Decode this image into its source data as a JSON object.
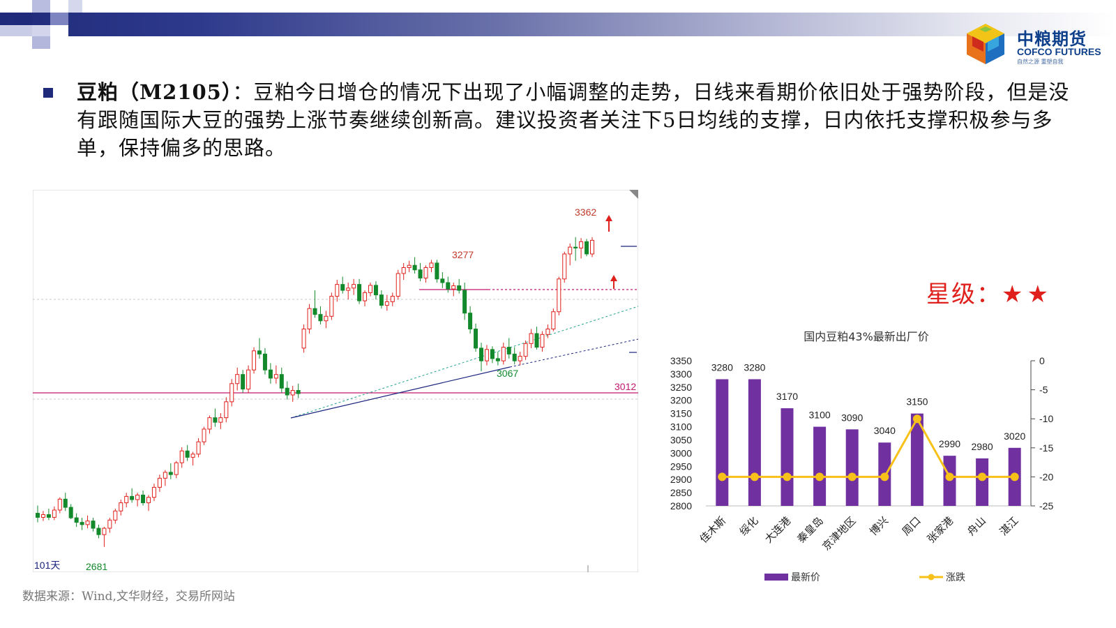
{
  "header": {
    "logo_cn": "中粮期货",
    "logo_en": "COFCO FUTURES",
    "logo_sub": "自然之源 重塑自我"
  },
  "paragraph": {
    "title": "豆粕（M2105）",
    "body": "：豆粕今日增仓的情况下出现了小幅调整的走势，日线来看期价依旧处于强势阶段，但是没有跟随国际大豆的强势上涨节奏继续创新高。建议投资者关注下5日均线的支撑，日内依托支撑积极参与多单，保持偏多的思路。"
  },
  "rating": {
    "label": "星级：",
    "stars": "★★"
  },
  "source": "数据来源：Wind,文华财经，交易所网站",
  "colors": {
    "up": "#e0201c",
    "down": "#12892b",
    "bar": "#7030a0",
    "line": "#f7c11a",
    "brand": "#1f2a7a"
  },
  "chart_data": [
    {
      "type": "candlestick",
      "title": "",
      "period_label": "101天",
      "annotations": [
        {
          "label": "2681",
          "value": 2681,
          "kind": "low"
        },
        {
          "label": "3277",
          "value": 3277,
          "kind": "high"
        },
        {
          "label": "3067",
          "value": 3067,
          "kind": "low"
        },
        {
          "label": "3362",
          "value": 3362,
          "kind": "high"
        },
        {
          "label": "3012",
          "value": 3012,
          "kind": "level"
        }
      ],
      "ylim": [
        2650,
        3420
      ],
      "candles": [
        [
          2755,
          2772,
          2735,
          2746
        ],
        [
          2746,
          2760,
          2738,
          2752
        ],
        [
          2752,
          2765,
          2740,
          2746
        ],
        [
          2746,
          2770,
          2740,
          2762
        ],
        [
          2762,
          2790,
          2755,
          2786
        ],
        [
          2786,
          2800,
          2760,
          2768
        ],
        [
          2768,
          2775,
          2742,
          2745
        ],
        [
          2745,
          2755,
          2725,
          2735
        ],
        [
          2735,
          2745,
          2718,
          2730
        ],
        [
          2730,
          2750,
          2722,
          2738
        ],
        [
          2738,
          2745,
          2715,
          2722
        ],
        [
          2722,
          2730,
          2700,
          2708
        ],
        [
          2708,
          2725,
          2681,
          2722
        ],
        [
          2722,
          2745,
          2712,
          2740
        ],
        [
          2740,
          2765,
          2732,
          2760
        ],
        [
          2760,
          2785,
          2750,
          2778
        ],
        [
          2778,
          2800,
          2768,
          2792
        ],
        [
          2792,
          2810,
          2778,
          2785
        ],
        [
          2785,
          2800,
          2770,
          2795
        ],
        [
          2795,
          2805,
          2772,
          2778
        ],
        [
          2778,
          2795,
          2760,
          2790
        ],
        [
          2790,
          2820,
          2782,
          2812
        ],
        [
          2812,
          2840,
          2802,
          2832
        ],
        [
          2832,
          2850,
          2815,
          2845
        ],
        [
          2845,
          2865,
          2830,
          2840
        ],
        [
          2840,
          2870,
          2832,
          2866
        ],
        [
          2866,
          2900,
          2855,
          2892
        ],
        [
          2892,
          2905,
          2870,
          2878
        ],
        [
          2878,
          2890,
          2860,
          2885
        ],
        [
          2885,
          2920,
          2878,
          2912
        ],
        [
          2912,
          2945,
          2905,
          2940
        ],
        [
          2940,
          2970,
          2930,
          2965
        ],
        [
          2965,
          2985,
          2945,
          2955
        ],
        [
          2955,
          2975,
          2940,
          2965
        ],
        [
          2965,
          3010,
          2955,
          3000
        ],
        [
          3000,
          3050,
          2990,
          3040
        ],
        [
          3040,
          3075,
          3025,
          3060
        ],
        [
          3060,
          3070,
          3020,
          3028
        ],
        [
          3028,
          3080,
          3020,
          3070
        ],
        [
          3070,
          3120,
          3062,
          3112
        ],
        [
          3112,
          3140,
          3095,
          3105
        ],
        [
          3105,
          3118,
          3060,
          3070
        ],
        [
          3070,
          3085,
          3040,
          3052
        ],
        [
          3052,
          3080,
          3040,
          3060
        ],
        [
          3060,
          3075,
          3020,
          3030
        ],
        [
          3030,
          3045,
          3005,
          3015
        ],
        [
          3015,
          3035,
          3000,
          3025
        ],
        [
          3025,
          3040,
          3008,
          3018
        ],
        [
          3118,
          3170,
          3108,
          3160
        ],
        [
          3160,
          3215,
          3150,
          3205
        ],
        [
          3205,
          3245,
          3185,
          3192
        ],
        [
          3192,
          3210,
          3170,
          3178
        ],
        [
          3178,
          3200,
          3162,
          3188
        ],
        [
          3188,
          3240,
          3180,
          3232
        ],
        [
          3232,
          3268,
          3220,
          3258
        ],
        [
          3258,
          3275,
          3238,
          3245
        ],
        [
          3245,
          3262,
          3225,
          3250
        ],
        [
          3250,
          3270,
          3235,
          3258
        ],
        [
          3258,
          3270,
          3215,
          3222
        ],
        [
          3222,
          3245,
          3210,
          3240
        ],
        [
          3240,
          3262,
          3232,
          3256
        ],
        [
          3256,
          3265,
          3225,
          3235
        ],
        [
          3235,
          3245,
          3205,
          3212
        ],
        [
          3212,
          3235,
          3200,
          3220
        ],
        [
          3220,
          3240,
          3210,
          3232
        ],
        [
          3232,
          3290,
          3225,
          3282
        ],
        [
          3282,
          3305,
          3268,
          3295
        ],
        [
          3295,
          3310,
          3285,
          3300
        ],
        [
          3300,
          3318,
          3282,
          3290
        ],
        [
          3290,
          3305,
          3265,
          3272
        ],
        [
          3272,
          3300,
          3262,
          3295
        ],
        [
          3295,
          3312,
          3285,
          3305
        ],
        [
          3305,
          3312,
          3262,
          3270
        ],
        [
          3270,
          3285,
          3250,
          3262
        ],
        [
          3262,
          3275,
          3240,
          3248
        ],
        [
          3248,
          3262,
          3232,
          3255
        ],
        [
          3255,
          3270,
          3238,
          3245
        ],
        [
          3245,
          3262,
          3180,
          3195
        ],
        [
          3195,
          3210,
          3150,
          3160
        ],
        [
          3160,
          3172,
          3110,
          3118
        ],
        [
          3118,
          3130,
          3067,
          3090
        ],
        [
          3090,
          3125,
          3080,
          3115
        ],
        [
          3115,
          3122,
          3085,
          3095
        ],
        [
          3095,
          3110,
          3080,
          3090
        ],
        [
          3090,
          3130,
          3082,
          3120
        ],
        [
          3120,
          3140,
          3095,
          3105
        ],
        [
          3105,
          3120,
          3082,
          3090
        ],
        [
          3090,
          3110,
          3080,
          3100
        ],
        [
          3100,
          3135,
          3092,
          3128
        ],
        [
          3128,
          3160,
          3118,
          3150
        ],
        [
          3150,
          3165,
          3115,
          3120
        ],
        [
          3120,
          3155,
          3110,
          3148
        ],
        [
          3148,
          3170,
          3140,
          3160
        ],
        [
          3160,
          3205,
          3155,
          3198
        ],
        [
          3198,
          3275,
          3190,
          3270
        ],
        [
          3270,
          3330,
          3262,
          3325
        ],
        [
          3325,
          3348,
          3300,
          3340
        ],
        [
          3340,
          3362,
          3310,
          3338
        ],
        [
          3338,
          3360,
          3315,
          3352
        ],
        [
          3352,
          3358,
          3320,
          3325
        ],
        [
          3325,
          3362,
          3318,
          3355
        ]
      ]
    },
    {
      "type": "bar",
      "title": "国内豆粕43%最新出厂价",
      "categories": [
        "佳木斯",
        "绥化",
        "大连港",
        "秦皇岛",
        "京津地区",
        "博兴",
        "周口",
        "张家港",
        "舟山",
        "湛江"
      ],
      "series": [
        {
          "name": "最新价",
          "type": "bar",
          "axis": "left",
          "values": [
            3280,
            3280,
            3170,
            3100,
            3090,
            3040,
            3150,
            2990,
            2980,
            3020
          ]
        },
        {
          "name": "涨跌",
          "type": "line",
          "axis": "right",
          "values": [
            -20,
            -20,
            -20,
            -20,
            -20,
            -20,
            -10,
            -20,
            -20,
            -20
          ]
        }
      ],
      "ylim": [
        2800,
        3350
      ],
      "yticks": [
        3350,
        3300,
        3250,
        3200,
        3150,
        3100,
        3050,
        3000,
        2950,
        2900,
        2850,
        2800
      ],
      "y2lim": [
        -25,
        0
      ],
      "y2ticks": [
        0,
        -5,
        -10,
        -15,
        -20,
        -25
      ],
      "legend": "bottom",
      "grid": false
    }
  ]
}
